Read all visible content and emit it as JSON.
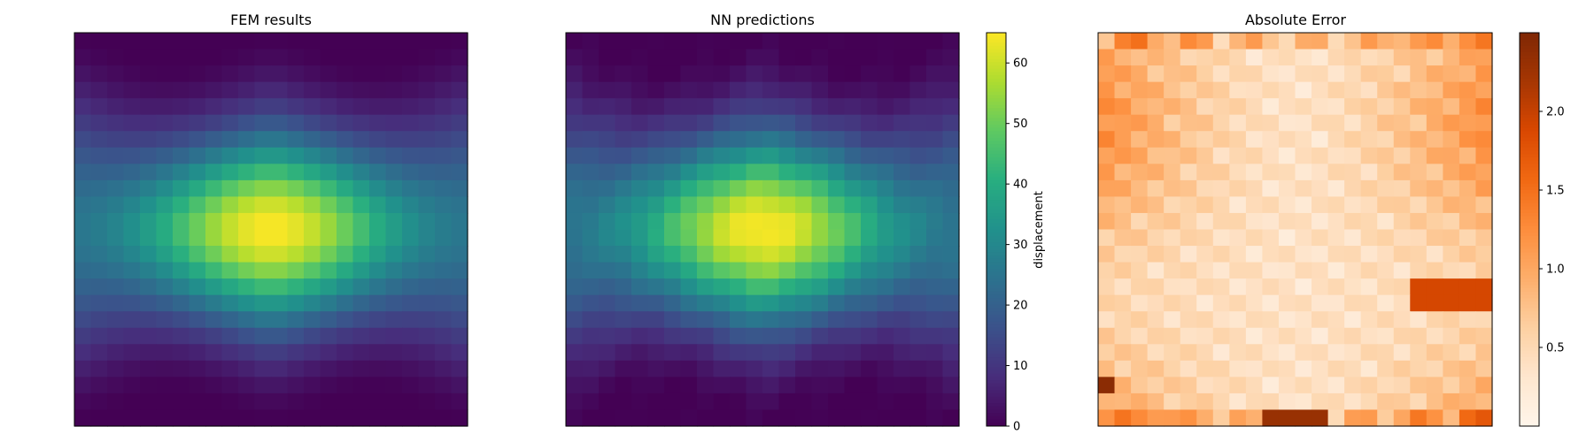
{
  "chart_data": [
    {
      "type": "heatmap",
      "title": "FEM results",
      "grid": false,
      "colormap": "viridis",
      "value_range": [
        0,
        65
      ],
      "nx": 24,
      "ny": 24,
      "field": {
        "description_key": "displacement",
        "peak": 65,
        "peak_cell": [
          11.5,
          11.5
        ]
      }
    },
    {
      "type": "heatmap",
      "title": "NN predictions",
      "grid": false,
      "colormap": "viridis",
      "value_range": [
        0,
        65
      ],
      "nx": 24,
      "ny": 24,
      "colorbar": {
        "label": "displacement",
        "ticks": [
          0,
          10,
          20,
          30,
          40,
          50,
          60
        ],
        "tick_labels": [
          "0",
          "10",
          "20",
          "30",
          "40",
          "50",
          "60"
        ]
      }
    },
    {
      "type": "heatmap",
      "title": "Absolute Error",
      "grid": false,
      "colormap": "oranges",
      "value_range": [
        0,
        2.5
      ],
      "nx": 24,
      "ny": 24,
      "colorbar": {
        "label": "",
        "ticks": [
          0.5,
          1.0,
          1.5,
          2.0
        ],
        "tick_labels": [
          "0.5",
          "1.0",
          "1.5",
          "2.0"
        ]
      }
    }
  ]
}
